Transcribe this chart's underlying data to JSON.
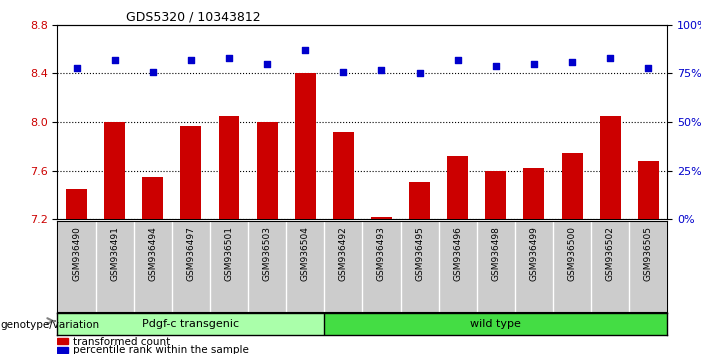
{
  "title": "GDS5320 / 10343812",
  "samples": [
    "GSM936490",
    "GSM936491",
    "GSM936494",
    "GSM936497",
    "GSM936501",
    "GSM936503",
    "GSM936504",
    "GSM936492",
    "GSM936493",
    "GSM936495",
    "GSM936496",
    "GSM936498",
    "GSM936499",
    "GSM936500",
    "GSM936502",
    "GSM936505"
  ],
  "bar_values": [
    7.45,
    8.0,
    7.55,
    7.97,
    8.05,
    8.0,
    8.4,
    7.92,
    7.22,
    7.51,
    7.72,
    7.6,
    7.62,
    7.75,
    8.05,
    7.68
  ],
  "dot_values": [
    78,
    82,
    76,
    82,
    83,
    80,
    87,
    76,
    77,
    75,
    82,
    79,
    80,
    81,
    83,
    78
  ],
  "transgenic_count": 7,
  "wild_count": 9,
  "ylim_left": [
    7.2,
    8.8
  ],
  "ylim_right": [
    0,
    100
  ],
  "yticks_left": [
    7.2,
    7.6,
    8.0,
    8.4,
    8.8
  ],
  "yticks_right": [
    0,
    25,
    50,
    75,
    100
  ],
  "bar_color": "#cc0000",
  "dot_color": "#0000cc",
  "bar_bottom": 7.2,
  "transgenic_color": "#aaffaa",
  "wildtype_color": "#44dd44",
  "bg_color": "#cccccc",
  "group_label_transgenic": "Pdgf-c transgenic",
  "group_label_wildtype": "wild type",
  "legend_bar": "transformed count",
  "legend_dot": "percentile rank within the sample",
  "genotype_label": "genotype/variation"
}
